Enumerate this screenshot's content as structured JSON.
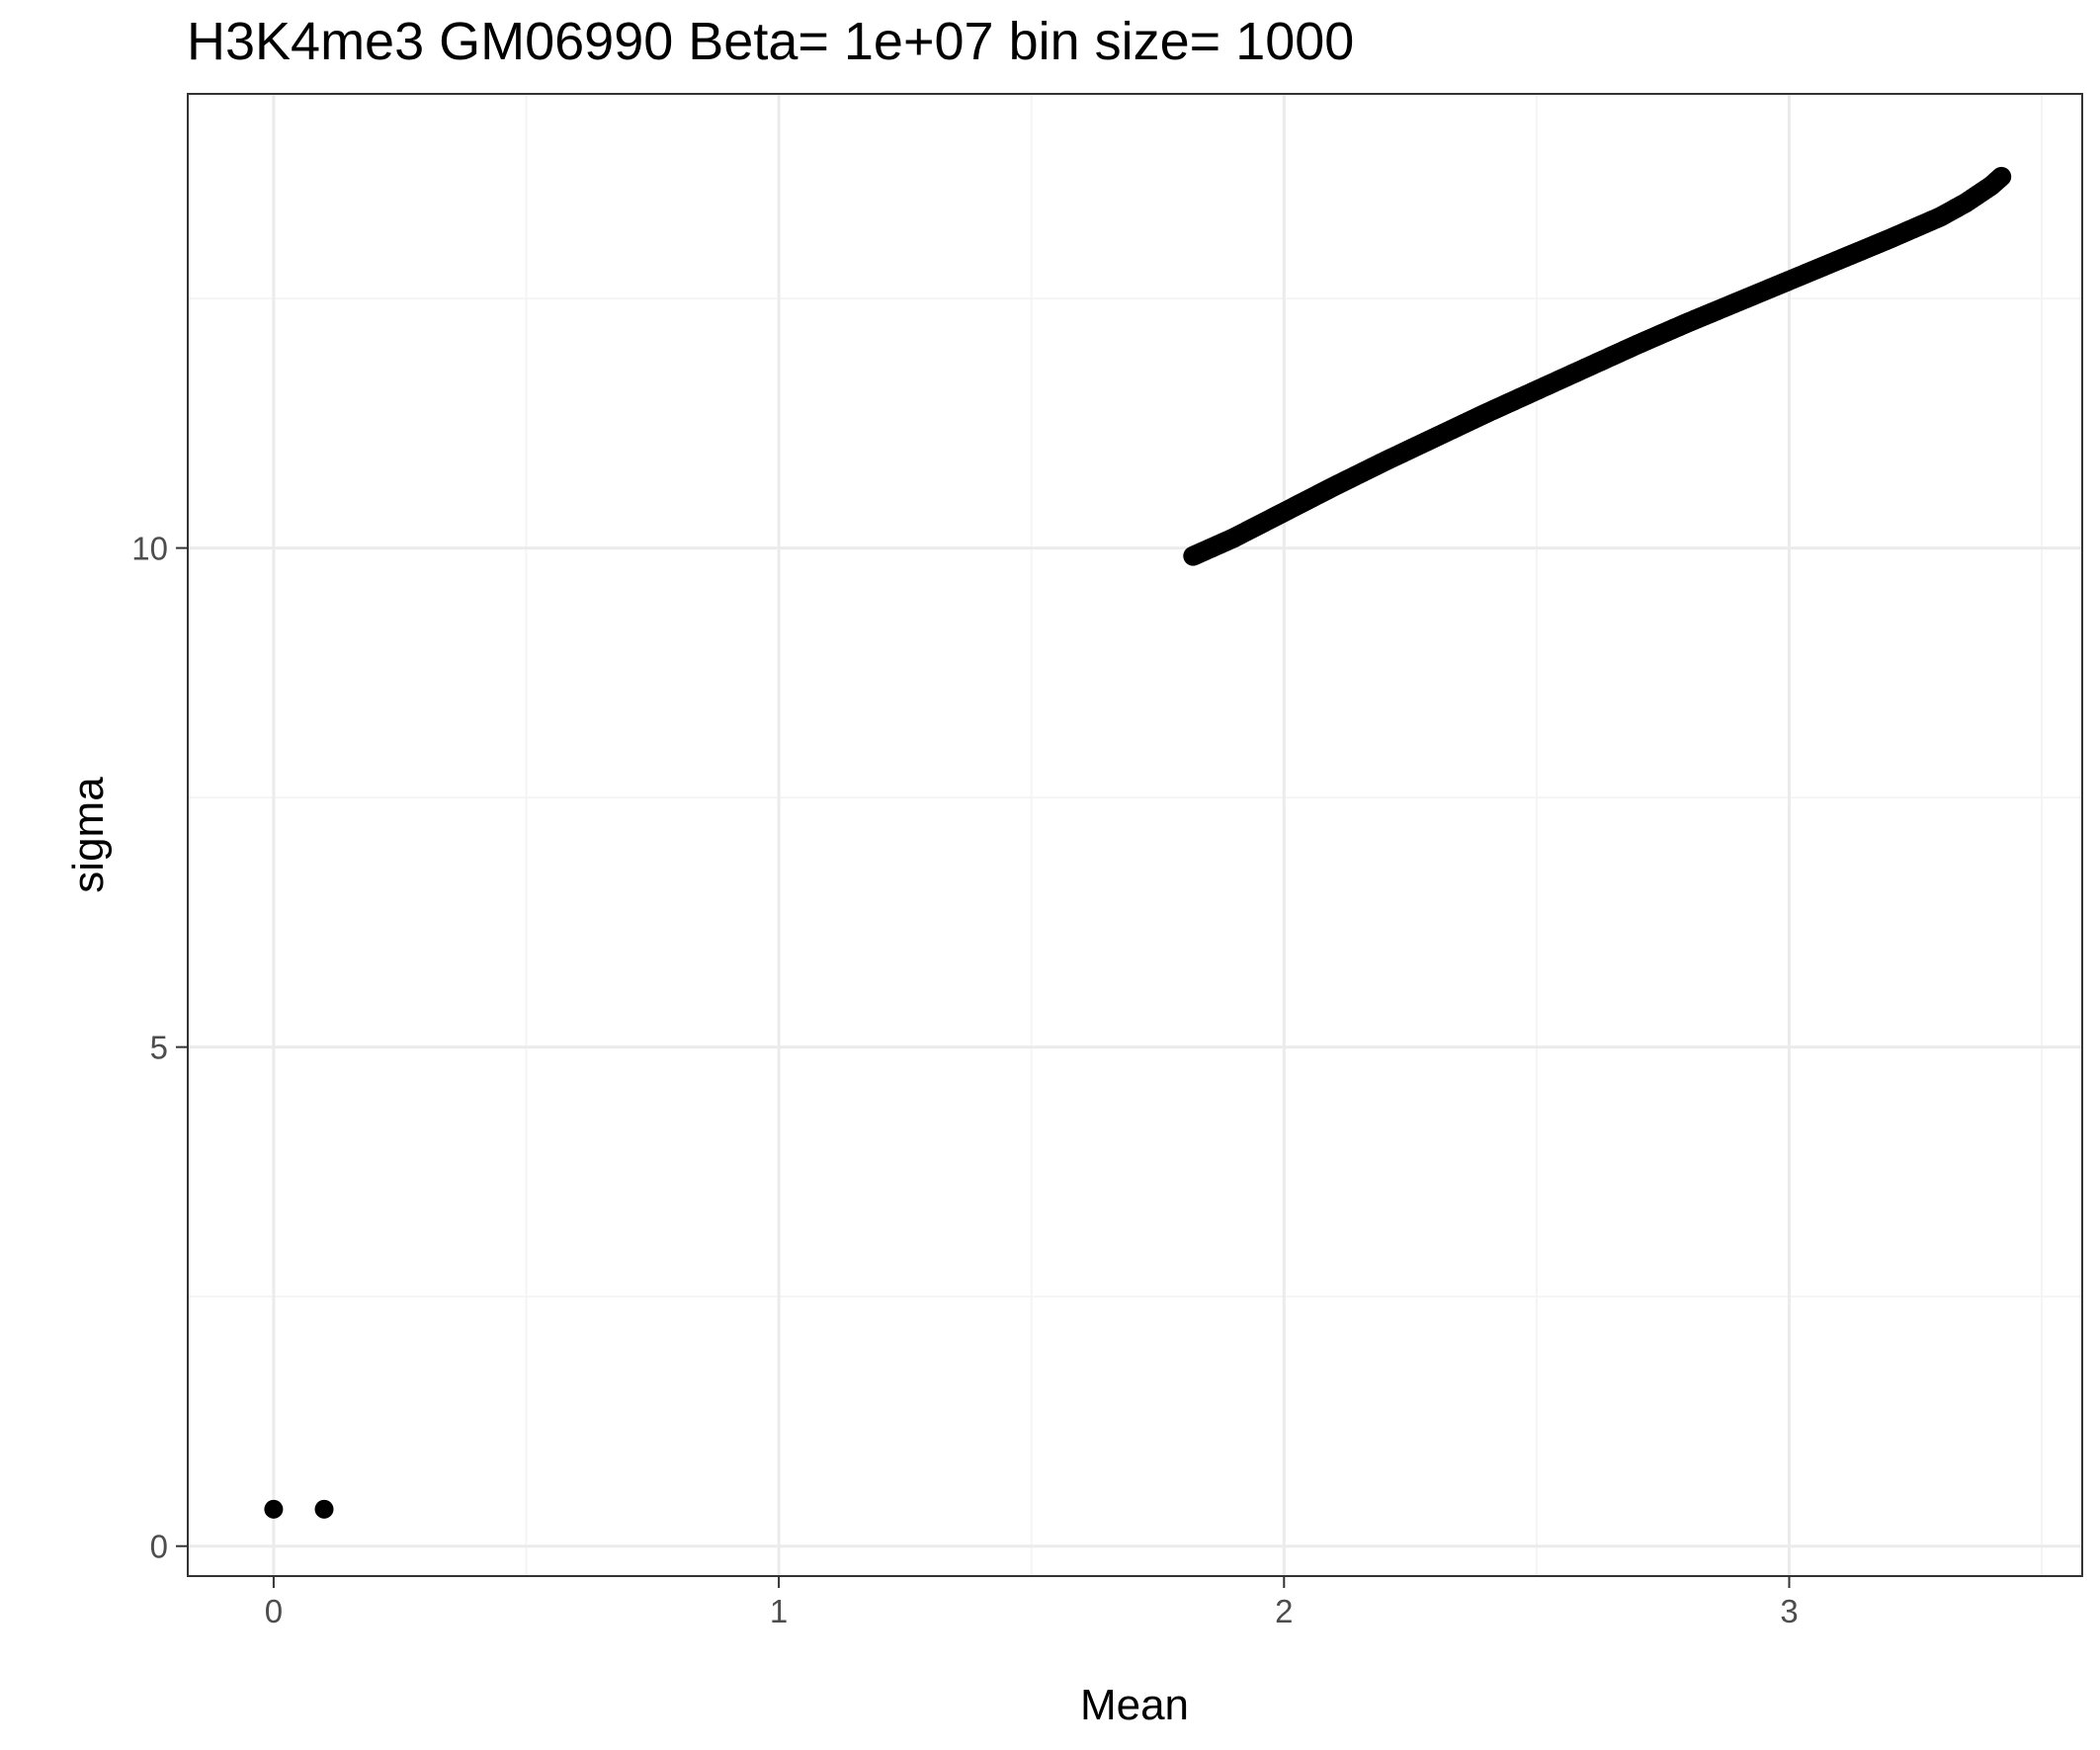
{
  "chart_data": {
    "type": "scatter",
    "title": "H3K4me3 GM06990  Beta=  1e+07  bin size=  1000",
    "xlabel": "Mean",
    "ylabel": "sigma",
    "xlim": [
      -0.17,
      3.58
    ],
    "ylim": [
      -0.3,
      14.55
    ],
    "x_ticks": [
      0,
      1,
      2,
      3
    ],
    "y_ticks": [
      0,
      5,
      10
    ],
    "x_tick_labels": [
      "0",
      "1",
      "2",
      "3"
    ],
    "y_tick_labels": [
      "0",
      "5",
      "10"
    ],
    "grid": true,
    "legend": "none",
    "series": [
      {
        "points": [
          [
            0.0,
            0.37
          ],
          [
            0.1,
            0.37
          ],
          [
            1.82,
            9.92
          ],
          [
            1.9,
            10.1
          ],
          [
            2.0,
            10.36
          ],
          [
            2.1,
            10.62
          ],
          [
            2.2,
            10.87
          ],
          [
            2.3,
            11.11
          ],
          [
            2.4,
            11.35
          ],
          [
            2.5,
            11.58
          ],
          [
            2.6,
            11.81
          ],
          [
            2.7,
            12.04
          ],
          [
            2.8,
            12.26
          ],
          [
            2.9,
            12.47
          ],
          [
            3.0,
            12.68
          ],
          [
            3.1,
            12.89
          ],
          [
            3.2,
            13.1
          ],
          [
            3.3,
            13.32
          ],
          [
            3.35,
            13.46
          ],
          [
            3.4,
            13.63
          ],
          [
            3.42,
            13.72
          ]
        ]
      }
    ],
    "colors": {
      "points": "#000000",
      "grid_major": "#ebebeb",
      "grid_minor": "#f4f4f4",
      "panel_border": "#333333",
      "tick_label": "#4d4d4d"
    }
  }
}
